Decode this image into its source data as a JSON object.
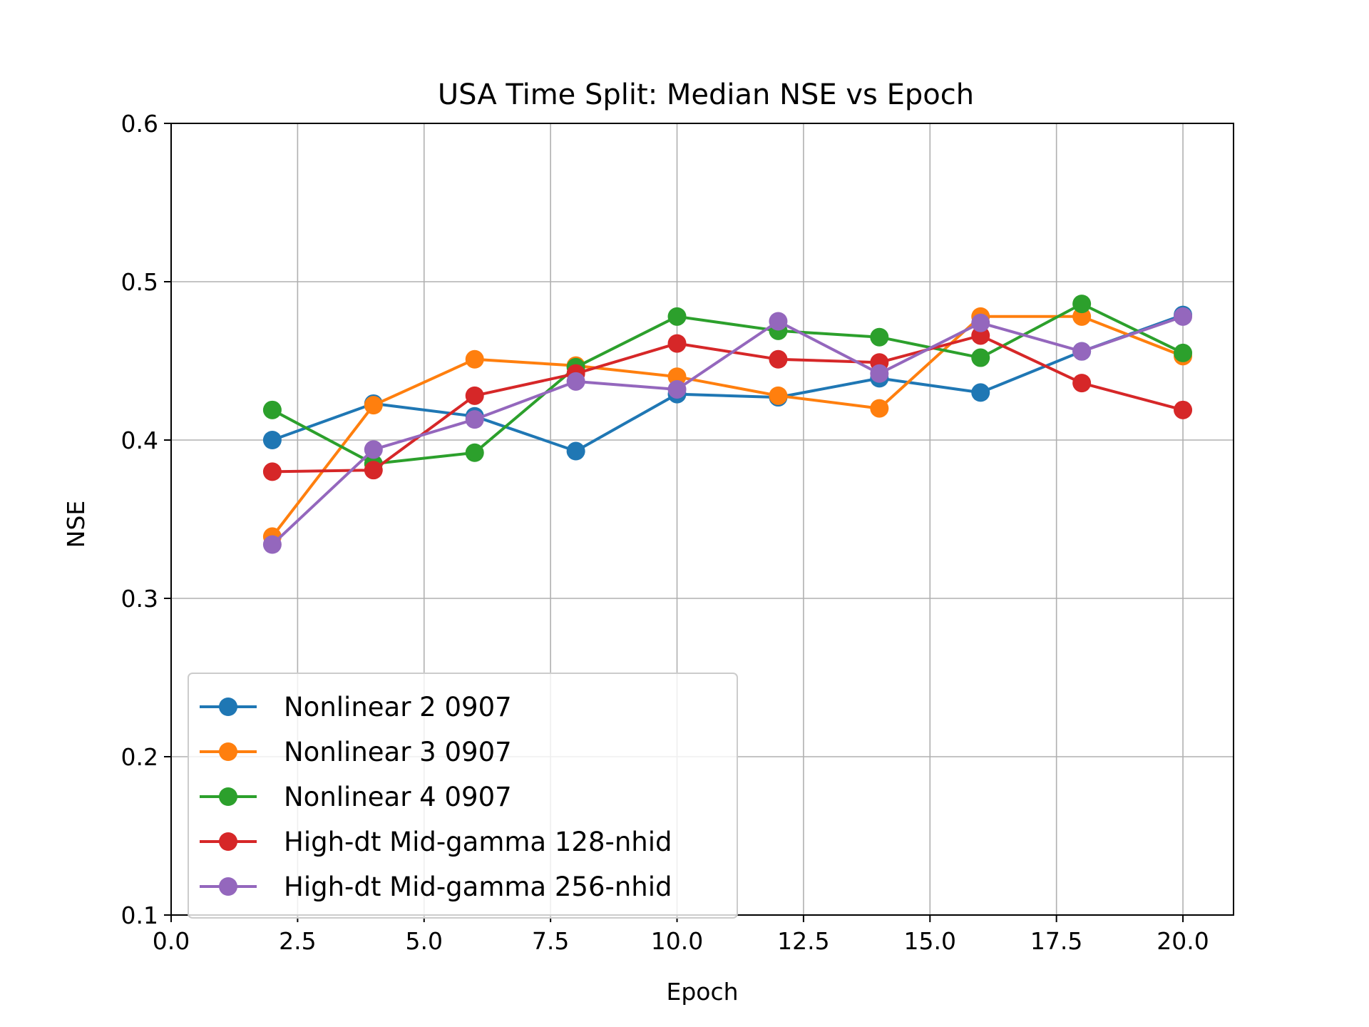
{
  "chart_data": {
    "type": "line",
    "title": "USA Time Split: Median NSE vs Epoch",
    "xlabel": "Epoch",
    "ylabel": "NSE",
    "xlim": [
      0,
      21
    ],
    "ylim": [
      0.1,
      0.6
    ],
    "xticks": [
      0.0,
      2.5,
      5.0,
      7.5,
      10.0,
      12.5,
      15.0,
      17.5,
      20.0
    ],
    "xtick_labels": [
      "0.0",
      "2.5",
      "5.0",
      "7.5",
      "10.0",
      "12.5",
      "15.0",
      "17.5",
      "20.0"
    ],
    "yticks": [
      0.1,
      0.2,
      0.3,
      0.4,
      0.5,
      0.6
    ],
    "ytick_labels": [
      "0.1",
      "0.2",
      "0.3",
      "0.4",
      "0.5",
      "0.6"
    ],
    "grid": true,
    "legend_position": "lower-left",
    "x": [
      2,
      4,
      6,
      8,
      10,
      12,
      14,
      16,
      18,
      20
    ],
    "series": [
      {
        "name": "Nonlinear 2 0907",
        "color": "#1f77b4",
        "values": [
          0.4,
          0.423,
          0.415,
          0.393,
          0.429,
          0.427,
          0.439,
          0.43,
          0.456,
          0.479
        ]
      },
      {
        "name": "Nonlinear 3 0907",
        "color": "#ff7f0e",
        "values": [
          0.339,
          0.422,
          0.451,
          0.447,
          0.44,
          0.428,
          0.42,
          0.478,
          0.478,
          0.453
        ]
      },
      {
        "name": "Nonlinear 4 0907",
        "color": "#2ca02c",
        "values": [
          0.419,
          0.385,
          0.392,
          0.446,
          0.478,
          0.469,
          0.465,
          0.452,
          0.486,
          0.455
        ]
      },
      {
        "name": "High-dt Mid-gamma 128-nhid",
        "color": "#d62728",
        "values": [
          0.38,
          0.381,
          0.428,
          0.442,
          0.461,
          0.451,
          0.449,
          0.466,
          0.436,
          0.419
        ]
      },
      {
        "name": "High-dt Mid-gamma 256-nhid",
        "color": "#9467bd",
        "values": [
          0.334,
          0.394,
          0.413,
          0.437,
          0.432,
          0.475,
          0.442,
          0.474,
          0.456,
          0.478
        ]
      }
    ]
  }
}
